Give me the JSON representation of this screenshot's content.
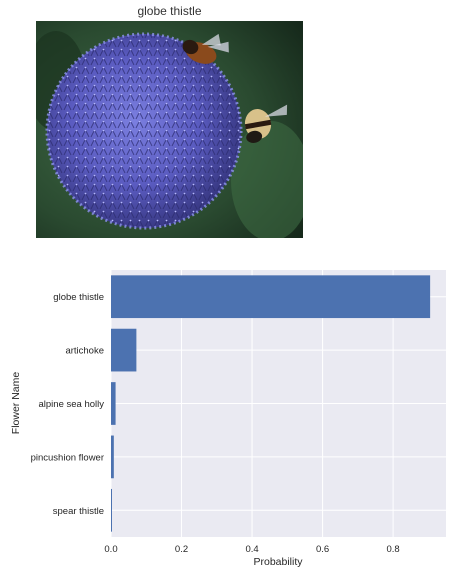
{
  "image_panel": {
    "title": "globe thistle",
    "icon": "globe-thistle-photo"
  },
  "colors": {
    "bar": "#4c72b0",
    "plot_background": "#eaeaf2",
    "grid": "#ffffff",
    "flower": "#5a5bc0",
    "foliage": "#2c4a32"
  },
  "chart_data": {
    "type": "bar",
    "orientation": "horizontal",
    "categories": [
      "globe thistle",
      "artichoke",
      "alpine sea holly",
      "pincushion flower",
      "spear thistle"
    ],
    "values": [
      0.905,
      0.072,
      0.013,
      0.008,
      0.002
    ],
    "title": "",
    "xlabel": "Probability",
    "ylabel": "Flower Name",
    "xlim": [
      0,
      0.95
    ],
    "xticks": [
      "0.0",
      "0.2",
      "0.4",
      "0.6",
      "0.8"
    ],
    "xtick_values": [
      0,
      0.2,
      0.4,
      0.6,
      0.8
    ],
    "grid": true
  }
}
